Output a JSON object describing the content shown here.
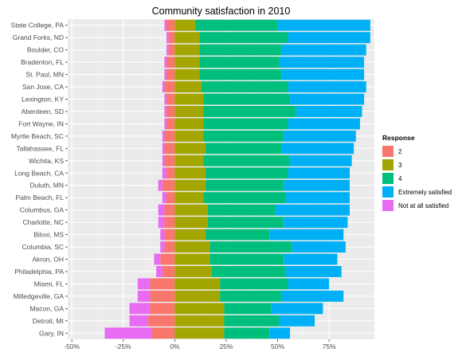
{
  "chart_data": {
    "type": "bar",
    "orientation": "horizontal",
    "stacked": "diverging",
    "title": "Community satisfaction in 2010",
    "xlabel": "",
    "ylabel": "",
    "xlim": [
      -52,
      97
    ],
    "x_ticks": [
      -50,
      -25,
      0,
      25,
      50,
      75
    ],
    "x_tick_labels": [
      "-50%",
      "-25%",
      "0%",
      "25%",
      "50%",
      "75%"
    ],
    "grid": true,
    "legend_position": "right",
    "legend": {
      "title": "Response",
      "items": [
        {
          "label": "2",
          "color": "#F8766D"
        },
        {
          "label": "3",
          "color": "#A3A500"
        },
        {
          "label": "4",
          "color": "#00BF7D"
        },
        {
          "label": "Extremely satisfied",
          "color": "#00B0F6"
        },
        {
          "label": "Not at all satisfied",
          "color": "#E76BF3"
        }
      ]
    },
    "categories": [
      "State College, PA",
      "Grand Forks, ND",
      "Boulder, CO",
      "Bradenton, FL",
      "St. Paul, MN",
      "San Jose, CA",
      "Lexington, KY",
      "Aberdeen, SD",
      "Fort Wayne, IN",
      "Myrtle Beach, SC",
      "Tallahassee, FL",
      "Wichita, KS",
      "Long Beach, CA",
      "Duluth, MN",
      "Palm Beach, FL",
      "Columbus, GA",
      "Charlotte, NC",
      "Biloxi, MS",
      "Columbia, SC",
      "Akron, OH",
      "Philadelphia, PA",
      "Miami, FL",
      "Milledgeville, GA",
      "Macon, GA",
      "Detroit, MI",
      "Gary, IN"
    ],
    "series": [
      {
        "name": "Not at all satisfied",
        "color": "#E76BF3",
        "values": [
          1,
          1,
          1,
          1,
          1,
          1,
          1,
          1,
          1,
          1,
          1,
          1,
          2,
          2,
          2,
          3,
          3,
          2,
          2,
          3,
          3,
          6,
          6,
          10,
          9,
          23
        ]
      },
      {
        "name": "2",
        "color": "#F8766D",
        "values": [
          4,
          3,
          3,
          4,
          4,
          5,
          4,
          4,
          4,
          5,
          5,
          5,
          4,
          6,
          4,
          5,
          5,
          5,
          5,
          7,
          6,
          12,
          12,
          12,
          13,
          11
        ]
      },
      {
        "name": "3",
        "color": "#A3A500",
        "values": [
          10,
          12,
          12,
          12,
          12,
          13,
          14,
          14,
          14,
          14,
          15,
          14,
          15,
          15,
          14,
          16,
          16,
          15,
          17,
          17,
          18,
          22,
          22,
          24,
          24,
          24
        ]
      },
      {
        "name": "4",
        "color": "#00BF7D",
        "values": [
          40,
          43,
          40,
          39,
          40,
          42,
          42,
          45,
          41,
          39,
          37,
          42,
          40,
          38,
          40,
          33,
          37,
          31,
          40,
          36,
          36,
          33,
          30,
          23,
          27,
          22
        ]
      },
      {
        "name": "Extremely satisfied",
        "color": "#00B0F6",
        "values": [
          45,
          40,
          41,
          41,
          40,
          38,
          36,
          32,
          35,
          35,
          35,
          30,
          30,
          32,
          31,
          36,
          31,
          36,
          26,
          26,
          27,
          20,
          30,
          25,
          17,
          10
        ]
      }
    ]
  }
}
